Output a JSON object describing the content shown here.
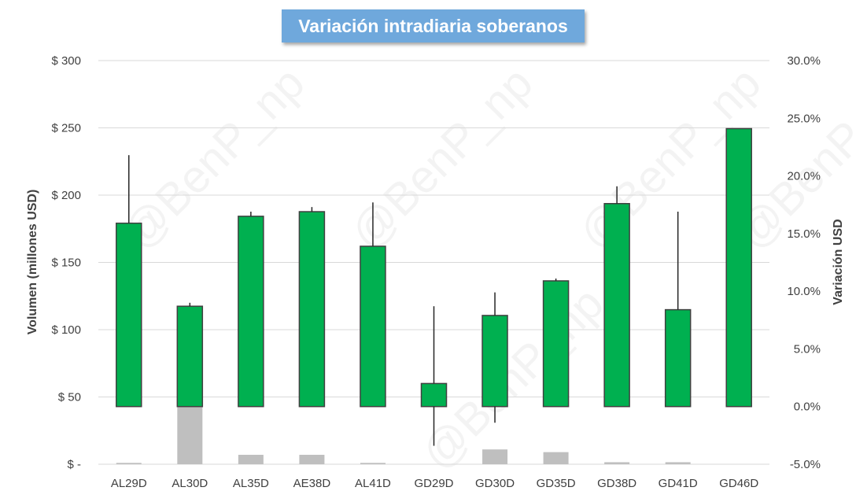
{
  "title": "Variación intradiaria soberanos",
  "watermark": "@BenP_np",
  "chart_data": {
    "type": "bar",
    "title": "Variación intradiaria soberanos",
    "categories": [
      "AL29D",
      "AL30D",
      "AL35D",
      "AE38D",
      "AL41D",
      "GD29D",
      "GD30D",
      "GD35D",
      "GD38D",
      "GD41D",
      "GD46D"
    ],
    "primary_axis": {
      "label": "Volumen (millones USD)",
      "ylim": [
        0,
        300
      ],
      "ticks": [
        0,
        50,
        100,
        150,
        200,
        250,
        300
      ],
      "tick_labels": [
        "$ -",
        "$ 50",
        "$ 100",
        "$ 150",
        "$ 200",
        "$ 250",
        "$ 300"
      ]
    },
    "secondary_axis": {
      "label": "Variación USD",
      "ylim": [
        -5,
        30
      ],
      "ticks": [
        -5,
        0,
        5,
        10,
        15,
        20,
        25,
        30
      ],
      "tick_labels": [
        "-5.0%",
        "0.0%",
        "5.0%",
        "10.0%",
        "15.0%",
        "20.0%",
        "25.0%",
        "30.0%"
      ]
    },
    "series": [
      {
        "axis": "secondary",
        "color": "#00b050",
        "values": [
          15.9,
          8.7,
          16.5,
          16.9,
          13.9,
          2.0,
          7.9,
          10.9,
          17.6,
          8.4,
          24.1
        ]
      },
      {
        "axis": "secondary",
        "type": "error_bar",
        "color": "#262626",
        "high": [
          21.8,
          9.0,
          16.9,
          17.3,
          17.7,
          8.7,
          9.9,
          11.1,
          19.1,
          16.9,
          24.1
        ],
        "low": [
          15.9,
          8.7,
          16.5,
          16.9,
          13.9,
          -3.4,
          -1.4,
          10.9,
          17.6,
          8.4,
          24.1
        ]
      },
      {
        "axis": "primary",
        "color": "#bfbfbf",
        "values": [
          1,
          43,
          7,
          7,
          1,
          0,
          11,
          9,
          1.5,
          1.5,
          0
        ]
      }
    ],
    "grid": true,
    "legend": "none"
  }
}
